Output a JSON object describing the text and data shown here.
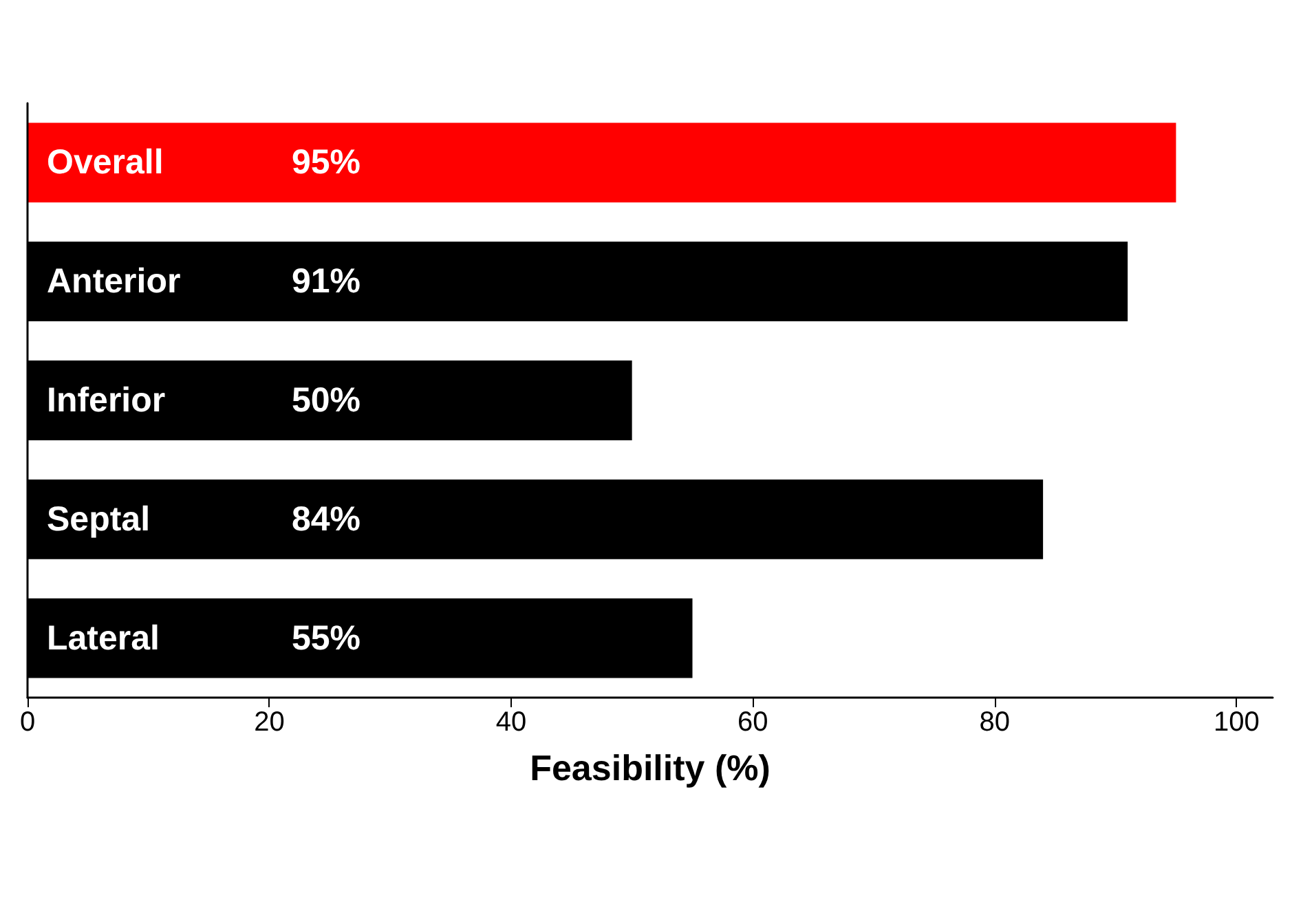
{
  "chart_data": {
    "type": "bar",
    "orientation": "horizontal",
    "xlabel": "Feasibility (%)",
    "categories": [
      "Overall",
      "Anterior",
      "Inferior",
      "Septal",
      "Lateral"
    ],
    "values": [
      95,
      91,
      50,
      84,
      55
    ],
    "colors": [
      "#ff0000",
      "#000000",
      "#000000",
      "#000000",
      "#000000"
    ],
    "value_labels": [
      "95%",
      "91%",
      "50%",
      "84%",
      "55%"
    ],
    "xlim": [
      0,
      103
    ],
    "xticks": [
      0,
      20,
      40,
      60,
      80,
      100
    ],
    "grid": false
  }
}
